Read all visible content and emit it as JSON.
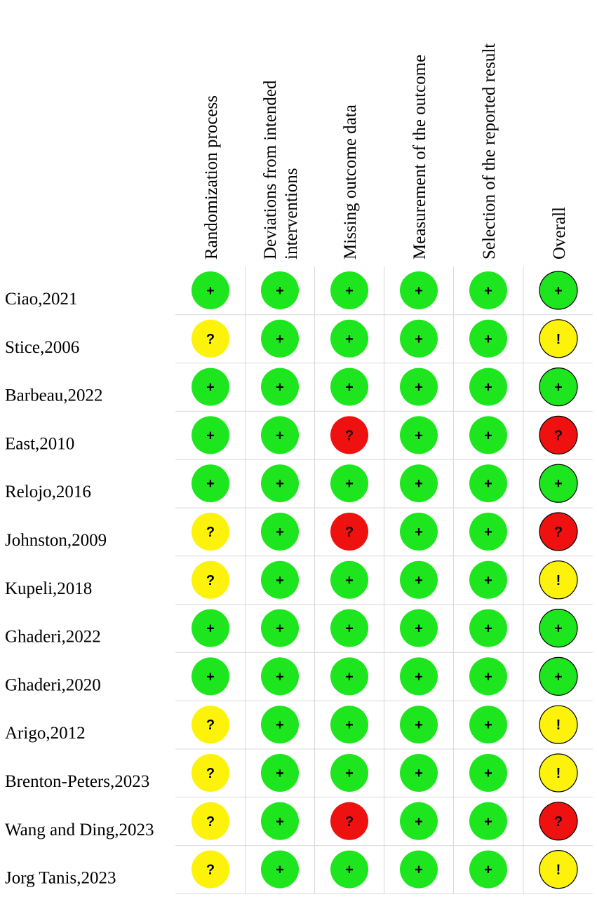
{
  "domains": [
    "Randomization process",
    [
      "Deviations from intended",
      "interventions"
    ],
    "Missing outcome data",
    "Measurement of the outcome",
    "Selection of the reported result",
    "Overall"
  ],
  "symbols": {
    "low": "+",
    "some": "?",
    "high": "?",
    "overall_some": "!"
  },
  "colors": {
    "low": "#1ee61e",
    "some": "#fcf20a",
    "high": "#ef1010",
    "grid": "#d9d9d9"
  },
  "studies": [
    {
      "name": "Ciao,2021",
      "judgements": [
        "low",
        "low",
        "low",
        "low",
        "low",
        "low"
      ]
    },
    {
      "name": "Stice,2006",
      "judgements": [
        "some",
        "low",
        "low",
        "low",
        "low",
        "overall_some"
      ]
    },
    {
      "name": "Barbeau,2022",
      "judgements": [
        "low",
        "low",
        "low",
        "low",
        "low",
        "low"
      ]
    },
    {
      "name": "East,2010",
      "judgements": [
        "low",
        "low",
        "high",
        "low",
        "low",
        "high"
      ]
    },
    {
      "name": "Relojo,2016",
      "judgements": [
        "low",
        "low",
        "low",
        "low",
        "low",
        "low"
      ]
    },
    {
      "name": "Johnston,2009",
      "judgements": [
        "some",
        "low",
        "high",
        "low",
        "low",
        "high"
      ]
    },
    {
      "name": "Kupeli,2018",
      "judgements": [
        "some",
        "low",
        "low",
        "low",
        "low",
        "overall_some"
      ]
    },
    {
      "name": "Ghaderi,2022",
      "judgements": [
        "low",
        "low",
        "low",
        "low",
        "low",
        "low"
      ]
    },
    {
      "name": "Ghaderi,2020",
      "judgements": [
        "low",
        "low",
        "low",
        "low",
        "low",
        "low"
      ]
    },
    {
      "name": "Arigo,2012",
      "judgements": [
        "some",
        "low",
        "low",
        "low",
        "low",
        "overall_some"
      ]
    },
    {
      "name": "Brenton-Peters,2023",
      "judgements": [
        "some",
        "low",
        "low",
        "low",
        "low",
        "overall_some"
      ]
    },
    {
      "name": "Wang and Ding,2023",
      "judgements": [
        "some",
        "low",
        "high",
        "low",
        "low",
        "high"
      ]
    },
    {
      "name": "Jorg Tanis,2023",
      "judgements": [
        "some",
        "low",
        "low",
        "low",
        "low",
        "overall_some"
      ]
    }
  ]
}
